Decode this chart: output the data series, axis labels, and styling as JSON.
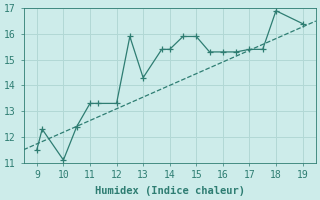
{
  "xlabel": "Humidex (Indice chaleur)",
  "ylabel": "",
  "background_color": "#cdecea",
  "grid_color": "#b2d8d5",
  "line_color": "#2e7d72",
  "scatter_color": "#2e7d72",
  "xlim": [
    8.5,
    19.5
  ],
  "ylim": [
    11,
    17
  ],
  "xticks": [
    9,
    10,
    11,
    12,
    13,
    14,
    15,
    16,
    17,
    18,
    19
  ],
  "yticks": [
    11,
    12,
    13,
    14,
    15,
    16,
    17
  ],
  "data_x": [
    9.0,
    9.2,
    10.0,
    10.5,
    11.0,
    11.3,
    12.0,
    12.5,
    13.0,
    13.7,
    14.0,
    14.5,
    15.0,
    15.5,
    16.0,
    16.5,
    17.0,
    17.5,
    18.0,
    19.0
  ],
  "data_y": [
    11.5,
    12.3,
    11.1,
    12.4,
    13.3,
    13.3,
    13.3,
    15.9,
    14.3,
    15.4,
    15.4,
    15.9,
    15.9,
    15.3,
    15.3,
    15.3,
    15.4,
    15.4,
    16.9,
    16.4
  ],
  "trend_x": [
    8.5,
    19.5
  ],
  "trend_y": [
    11.5,
    16.5
  ],
  "font_family": "monospace",
  "xlabel_fontsize": 7.5,
  "tick_fontsize": 7
}
